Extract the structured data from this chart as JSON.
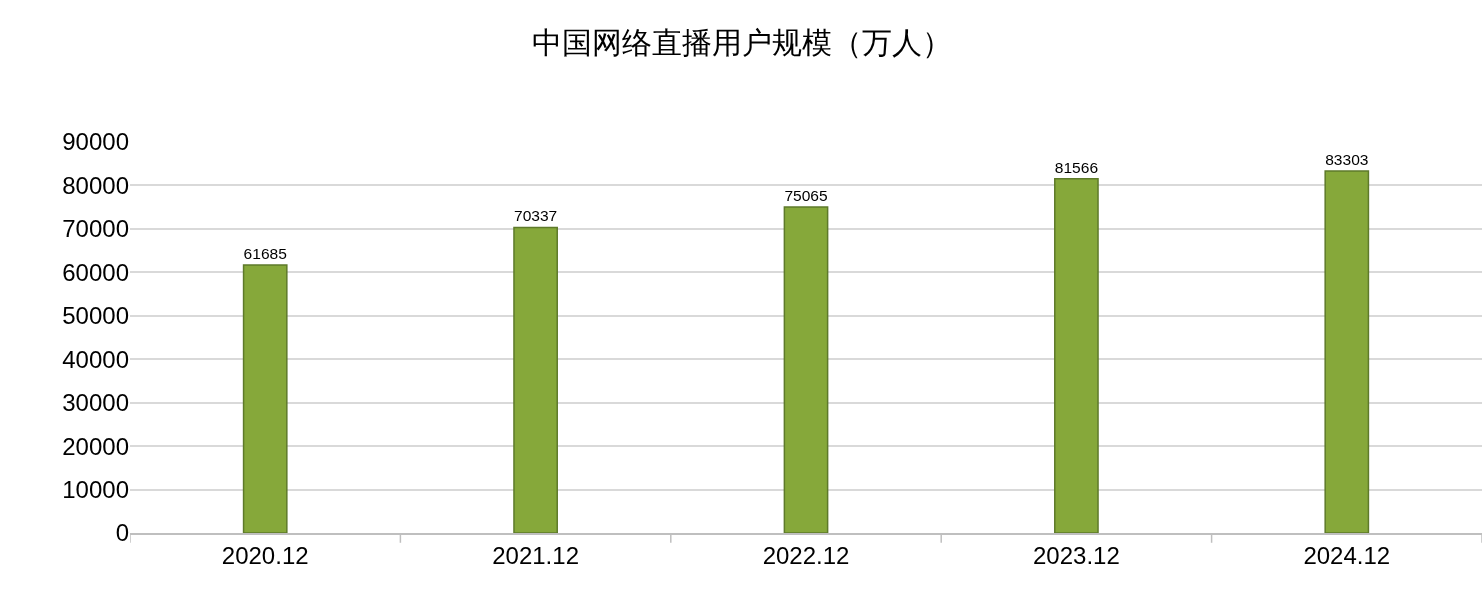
{
  "chart_data": {
    "type": "bar",
    "title": "中国网络直播用户规模（万人）",
    "categories": [
      "2020.12",
      "2021.12",
      "2022.12",
      "2023.12",
      "2024.12"
    ],
    "values": [
      61685,
      70337,
      75065,
      81566,
      83303
    ],
    "color": "#86a83a",
    "ylim": [
      0,
      90000
    ],
    "yticks": [
      0,
      10000,
      20000,
      30000,
      40000,
      50000,
      60000,
      70000,
      80000,
      90000
    ],
    "grid": "y",
    "data_labels": true
  }
}
